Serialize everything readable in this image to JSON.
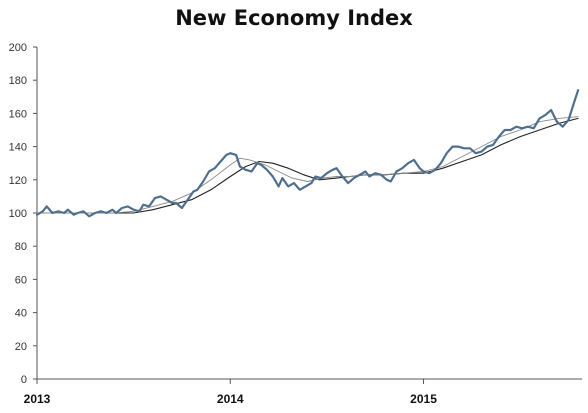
{
  "chart_data": {
    "type": "line",
    "title": "New Economy Index",
    "xlabel": "",
    "ylabel": "",
    "ylim": [
      0,
      200
    ],
    "yticks": [
      0,
      20,
      40,
      60,
      80,
      100,
      120,
      140,
      160,
      180,
      200
    ],
    "xticks": [
      "2013",
      "2014",
      "2015"
    ],
    "xlim": [
      2013.0,
      2015.82
    ],
    "grid": false,
    "legend": "none",
    "series": [
      {
        "role": "index",
        "color": "#4f6f8f",
        "x": [
          2013.0,
          2013.03,
          2013.05,
          2013.08,
          2013.11,
          2013.14,
          2013.16,
          2013.19,
          2013.21,
          2013.24,
          2013.27,
          2013.3,
          2013.33,
          2013.36,
          2013.39,
          2013.41,
          2013.44,
          2013.47,
          2013.5,
          2013.53,
          2013.55,
          2013.58,
          2013.61,
          2013.64,
          2013.67,
          2013.7,
          2013.72,
          2013.75,
          2013.78,
          2013.81,
          2013.83,
          2013.86,
          2013.89,
          2013.92,
          2013.95,
          2013.98,
          2014.0,
          2014.03,
          2014.05,
          2014.08,
          2014.11,
          2014.14,
          2014.16,
          2014.19,
          2014.22,
          2014.25,
          2014.27,
          2014.3,
          2014.33,
          2014.36,
          2014.39,
          2014.42,
          2014.44,
          2014.47,
          2014.5,
          2014.53,
          2014.55,
          2014.58,
          2014.61,
          2014.64,
          2014.67,
          2014.7,
          2014.72,
          2014.75,
          2014.78,
          2014.81,
          2014.83,
          2014.86,
          2014.89,
          2014.92,
          2014.95,
          2014.98,
          2015.0,
          2015.03,
          2015.06,
          2015.09,
          2015.12,
          2015.15,
          2015.18,
          2015.21,
          2015.24,
          2015.27,
          2015.3,
          2015.33,
          2015.36,
          2015.39,
          2015.42,
          2015.45,
          2015.48,
          2015.51,
          2015.54,
          2015.57,
          2015.6,
          2015.63,
          2015.66,
          2015.69,
          2015.72,
          2015.75,
          2015.78,
          2015.8
        ],
        "values": [
          99,
          101,
          104,
          100,
          101,
          100,
          102,
          99,
          100,
          101,
          98,
          100,
          101,
          100,
          102,
          100,
          103,
          104,
          102,
          101,
          105,
          104,
          109,
          110,
          108,
          106,
          106,
          103,
          108,
          113,
          114,
          119,
          125,
          127,
          131,
          135,
          136,
          135,
          128,
          126,
          125,
          130,
          129,
          126,
          122,
          116,
          121,
          116,
          118,
          114,
          116,
          118,
          122,
          121,
          124,
          126,
          127,
          122,
          118,
          121,
          123,
          125,
          122,
          124,
          123,
          120,
          119,
          125,
          127,
          130,
          132,
          127,
          125,
          124,
          126,
          130,
          136,
          140,
          140,
          139,
          139,
          136,
          137,
          140,
          141,
          146,
          150,
          150,
          152,
          151,
          152,
          151,
          157,
          159,
          162,
          155,
          152,
          156,
          167,
          174
        ],
        "display_note": ""
      },
      {
        "role": "short-moving-average",
        "color": "#888888",
        "x": [
          2013.0,
          2013.1,
          2013.2,
          2013.3,
          2013.4,
          2013.5,
          2013.6,
          2013.7,
          2013.8,
          2013.9,
          2014.0,
          2014.05,
          2014.1,
          2014.18,
          2014.25,
          2014.32,
          2014.4,
          2014.48,
          2014.55,
          2014.62,
          2014.7,
          2014.8,
          2014.9,
          2015.0,
          2015.1,
          2015.2,
          2015.3,
          2015.4,
          2015.5,
          2015.6,
          2015.7,
          2015.8
        ],
        "values": [
          100,
          100,
          100,
          100,
          100,
          101,
          104,
          107,
          112,
          120,
          129,
          133,
          132,
          129,
          125,
          121,
          119,
          121,
          122,
          122,
          123,
          123,
          124,
          125,
          128,
          134,
          140,
          146,
          150,
          155,
          157,
          158
        ]
      },
      {
        "role": "long-moving-average",
        "color": "#222222",
        "x": [
          2013.0,
          2013.1,
          2013.2,
          2013.3,
          2013.4,
          2013.5,
          2013.6,
          2013.7,
          2013.8,
          2013.9,
          2014.0,
          2014.08,
          2014.15,
          2014.22,
          2014.3,
          2014.38,
          2014.46,
          2014.55,
          2014.62,
          2014.7,
          2014.8,
          2014.9,
          2015.0,
          2015.1,
          2015.2,
          2015.3,
          2015.4,
          2015.5,
          2015.6,
          2015.7,
          2015.8
        ],
        "values": [
          100,
          100,
          100,
          100,
          100,
          100,
          102,
          105,
          108,
          114,
          122,
          128,
          131,
          130,
          127,
          123,
          120,
          121,
          122,
          123,
          123,
          124,
          124,
          127,
          131,
          135,
          141,
          146,
          150,
          154,
          157
        ]
      }
    ]
  }
}
